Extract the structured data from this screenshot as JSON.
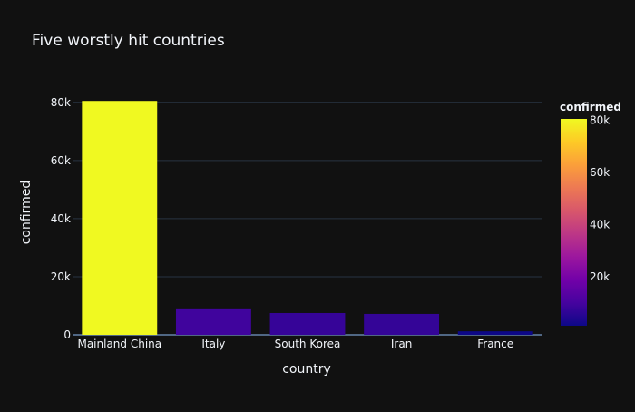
{
  "chart_data": {
    "type": "bar",
    "title": "Five worstly hit countries",
    "xlabel": "country",
    "ylabel": "confirmed",
    "categories": [
      "Mainland China",
      "Italy",
      "South Korea",
      "Iran",
      "France"
    ],
    "values": [
      80500,
      9100,
      7500,
      7200,
      1200
    ],
    "ylim": [
      0,
      84000
    ],
    "yticks": [
      0,
      20000,
      40000,
      60000,
      80000
    ],
    "ytick_labels": [
      "0",
      "20k",
      "40k",
      "60k",
      "80k"
    ],
    "grid": true,
    "colorscale": {
      "name": "plasma",
      "title": "confirmed",
      "range": [
        1200,
        80500
      ],
      "ticks": [
        20000,
        40000,
        60000,
        80000
      ],
      "tick_labels": [
        "20k",
        "40k",
        "60k",
        "80k"
      ],
      "stops": [
        "#0d0887",
        "#46039f",
        "#7201a8",
        "#9c179e",
        "#bd3786",
        "#d8576b",
        "#ed7953",
        "#fb9f3a",
        "#fdca26",
        "#f0f921"
      ]
    },
    "legend_position": "right"
  },
  "colors": {
    "background": "#111111",
    "grid": "#283442",
    "text": "#f2f5fa"
  }
}
